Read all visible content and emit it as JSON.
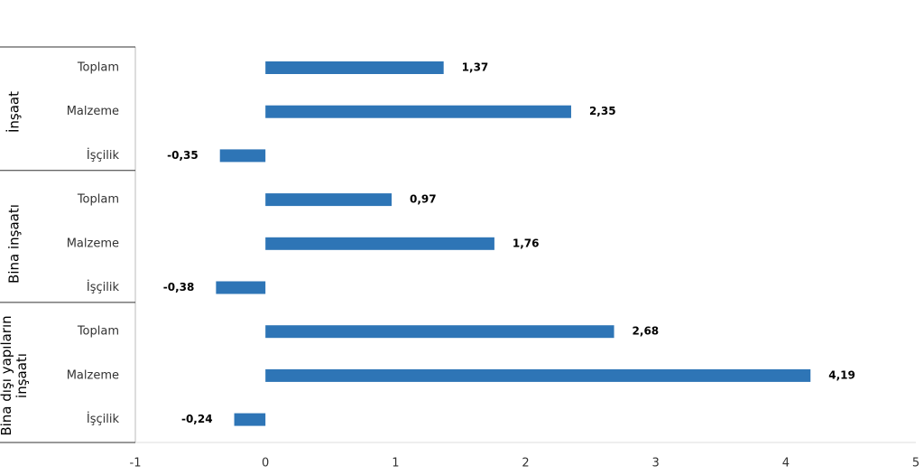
{
  "chart_data": {
    "type": "bar",
    "orientation": "horizontal",
    "color": "#2e75b6",
    "xlim": [
      -1,
      5
    ],
    "xticks": [
      -1,
      0,
      1,
      2,
      3,
      4,
      5
    ],
    "groups": [
      {
        "name": "İnşaat",
        "categories": [
          "Toplam",
          "Malzeme",
          "İşçilik"
        ],
        "values": [
          1.37,
          2.35,
          -0.35
        ],
        "value_labels": [
          "1,37",
          "2,35",
          "-0,35"
        ]
      },
      {
        "name": "Bina inşaatı",
        "categories": [
          "Toplam",
          "Malzeme",
          "İşçilik"
        ],
        "values": [
          0.97,
          1.76,
          -0.38
        ],
        "value_labels": [
          "0,97",
          "1,76",
          "-0,38"
        ]
      },
      {
        "name": "Bina dışı yapıların inşaatı",
        "categories": [
          "Toplam",
          "Malzeme",
          "İşçilik"
        ],
        "values": [
          2.68,
          4.19,
          -0.24
        ],
        "value_labels": [
          "2,68",
          "4,19",
          "-0,24"
        ]
      }
    ]
  }
}
